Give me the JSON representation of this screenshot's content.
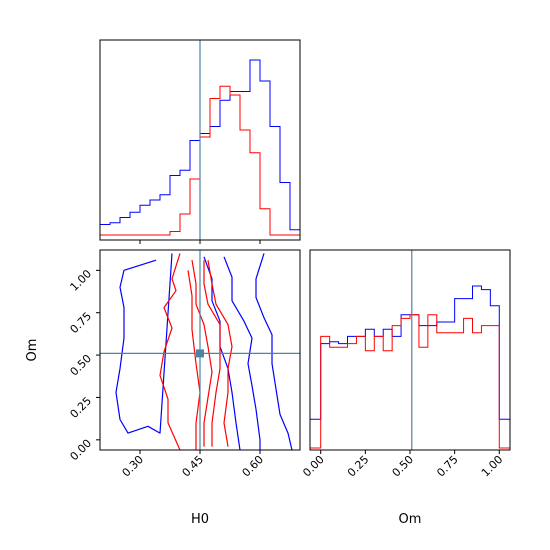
{
  "colors": {
    "blue": "#0000ff",
    "red": "#ff0000",
    "truth": "#4c84a6"
  },
  "chart_data": [
    {
      "panel": "H0-marginal",
      "type": "histogram",
      "x_range": [
        0.2,
        0.7
      ],
      "truth": 0.45,
      "series": [
        {
          "color": "blue",
          "edges": [
            0.2,
            0.225,
            0.25,
            0.275,
            0.3,
            0.325,
            0.35,
            0.375,
            0.4,
            0.425,
            0.45,
            0.475,
            0.5,
            0.525,
            0.55,
            0.575,
            0.6,
            0.625,
            0.65,
            0.675,
            0.7
          ],
          "heights": [
            0.06,
            0.07,
            0.1,
            0.13,
            0.17,
            0.2,
            0.23,
            0.34,
            0.37,
            0.54,
            0.58,
            0.62,
            0.77,
            0.82,
            0.82,
            1.0,
            0.88,
            0.62,
            0.3,
            0.03
          ]
        },
        {
          "color": "red",
          "edges": [
            0.2,
            0.225,
            0.25,
            0.275,
            0.3,
            0.325,
            0.35,
            0.375,
            0.4,
            0.425,
            0.45,
            0.475,
            0.5,
            0.525,
            0.55,
            0.575,
            0.6,
            0.625,
            0.65,
            0.675,
            0.7
          ],
          "heights": [
            0.0,
            0.0,
            0.0,
            0.0,
            0.0,
            0.0,
            0.0,
            0.02,
            0.12,
            0.32,
            0.56,
            0.78,
            0.85,
            0.8,
            0.6,
            0.47,
            0.15,
            0.0,
            0.0,
            0.0
          ]
        }
      ]
    },
    {
      "panel": "H0-Om-2D",
      "type": "contour",
      "x_range": [
        0.2,
        0.7
      ],
      "y_range": [
        -0.06,
        1.12
      ],
      "truth": [
        0.45,
        0.51
      ],
      "xticks": [
        "0.30",
        "0.45",
        "0.60"
      ],
      "yticks": [
        "0.00",
        "0.25",
        "0.50",
        "0.75",
        "1.00"
      ],
      "xlabel": "H0",
      "ylabel": "Om",
      "contours": [
        {
          "color": "blue",
          "points": [
            [
              0.34,
              1.06
            ],
            [
              0.26,
              1.0
            ],
            [
              0.25,
              0.9
            ],
            [
              0.26,
              0.78
            ],
            [
              0.26,
              0.6
            ],
            [
              0.25,
              0.42
            ],
            [
              0.24,
              0.28
            ],
            [
              0.25,
              0.12
            ],
            [
              0.27,
              0.04
            ],
            [
              0.32,
              0.08
            ],
            [
              0.35,
              0.04
            ],
            [
              0.38,
              1.1
            ]
          ]
        },
        {
          "color": "blue",
          "points": [
            [
              0.61,
              1.1
            ],
            [
              0.59,
              0.95
            ],
            [
              0.59,
              0.84
            ],
            [
              0.61,
              0.72
            ],
            [
              0.63,
              0.62
            ],
            [
              0.63,
              0.45
            ],
            [
              0.64,
              0.3
            ],
            [
              0.65,
              0.15
            ],
            [
              0.67,
              0.04
            ],
            [
              0.68,
              -0.06
            ]
          ]
        },
        {
          "color": "blue",
          "points": [
            [
              0.51,
              1.08
            ],
            [
              0.53,
              0.96
            ],
            [
              0.53,
              0.82
            ],
            [
              0.56,
              0.7
            ],
            [
              0.58,
              0.6
            ],
            [
              0.57,
              0.45
            ],
            [
              0.58,
              0.32
            ],
            [
              0.59,
              0.18
            ],
            [
              0.6,
              0.0
            ],
            [
              0.6,
              -0.06
            ]
          ]
        },
        {
          "color": "blue",
          "points": [
            [
              0.46,
              1.08
            ],
            [
              0.48,
              0.95
            ],
            [
              0.48,
              0.82
            ],
            [
              0.5,
              0.7
            ],
            [
              0.5,
              0.55
            ],
            [
              0.52,
              0.42
            ],
            [
              0.53,
              0.28
            ],
            [
              0.54,
              0.1
            ],
            [
              0.55,
              -0.06
            ]
          ]
        },
        {
          "color": "red",
          "points": [
            [
              0.4,
              1.1
            ],
            [
              0.38,
              0.95
            ],
            [
              0.39,
              0.88
            ],
            [
              0.36,
              0.78
            ],
            [
              0.38,
              0.66
            ],
            [
              0.36,
              0.52
            ],
            [
              0.35,
              0.38
            ],
            [
              0.37,
              0.24
            ],
            [
              0.37,
              0.1
            ],
            [
              0.4,
              -0.06
            ]
          ]
        },
        {
          "color": "red",
          "points": [
            [
              0.47,
              1.06
            ],
            [
              0.48,
              0.92
            ],
            [
              0.49,
              0.8
            ],
            [
              0.52,
              0.68
            ],
            [
              0.53,
              0.55
            ],
            [
              0.52,
              0.42
            ],
            [
              0.52,
              0.28
            ],
            [
              0.51,
              0.1
            ],
            [
              0.52,
              -0.04
            ]
          ]
        },
        {
          "color": "red",
          "points": [
            [
              0.46,
              1.06
            ],
            [
              0.46,
              0.92
            ],
            [
              0.47,
              0.8
            ],
            [
              0.5,
              0.68
            ],
            [
              0.5,
              0.55
            ],
            [
              0.5,
              0.42
            ],
            [
              0.49,
              0.28
            ],
            [
              0.48,
              0.1
            ],
            [
              0.48,
              -0.04
            ]
          ]
        },
        {
          "color": "red",
          "points": [
            [
              0.43,
              1.06
            ],
            [
              0.44,
              0.92
            ],
            [
              0.44,
              0.8
            ],
            [
              0.46,
              0.68
            ],
            [
              0.47,
              0.55
            ],
            [
              0.48,
              0.4
            ],
            [
              0.47,
              0.25
            ],
            [
              0.46,
              0.1
            ],
            [
              0.46,
              -0.04
            ]
          ]
        },
        {
          "color": "red",
          "points": [
            [
              0.42,
              1.0
            ],
            [
              0.43,
              0.85
            ],
            [
              0.43,
              0.65
            ],
            [
              0.44,
              0.45
            ],
            [
              0.45,
              0.28
            ],
            [
              0.44,
              0.1
            ],
            [
              0.44,
              -0.06
            ]
          ]
        }
      ]
    },
    {
      "panel": "Om-marginal",
      "type": "histogram",
      "x_range": [
        -0.06,
        1.06
      ],
      "truth": 0.51,
      "xticks": [
        "0.00",
        "0.25",
        "0.50",
        "0.75",
        "1.00"
      ],
      "xlabel": "Om",
      "series": [
        {
          "color": "blue",
          "edges": [
            -0.06,
            0.0,
            0.05,
            0.1,
            0.15,
            0.2,
            0.25,
            0.3,
            0.35,
            0.4,
            0.45,
            0.5,
            0.55,
            0.6,
            0.65,
            0.7,
            0.75,
            0.8,
            0.85,
            0.9,
            0.95,
            1.0,
            1.06
          ],
          "heights": [
            0.16,
            0.58,
            0.59,
            0.58,
            0.62,
            0.62,
            0.66,
            0.62,
            0.66,
            0.62,
            0.74,
            0.74,
            0.68,
            0.68,
            0.7,
            0.7,
            0.83,
            0.83,
            0.9,
            0.88,
            0.79,
            0.16
          ]
        },
        {
          "color": "red",
          "edges": [
            -0.06,
            0.0,
            0.05,
            0.1,
            0.15,
            0.2,
            0.25,
            0.3,
            0.35,
            0.4,
            0.45,
            0.5,
            0.55,
            0.6,
            0.65,
            0.7,
            0.75,
            0.8,
            0.85,
            0.9,
            0.95,
            1.0,
            1.06
          ],
          "heights": [
            0.0,
            0.62,
            0.56,
            0.56,
            0.58,
            0.62,
            0.54,
            0.62,
            0.54,
            0.68,
            0.72,
            0.74,
            0.56,
            0.74,
            0.64,
            0.64,
            0.64,
            0.72,
            0.64,
            0.68,
            0.68,
            0.0
          ]
        }
      ]
    }
  ]
}
